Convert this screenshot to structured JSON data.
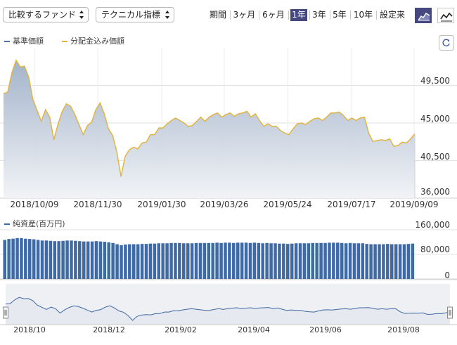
{
  "toolbar": {
    "fund_select": "比較するファンド",
    "indicator_select": "テクニカル指標",
    "period_label": "期間",
    "periods": [
      "3ヶ月",
      "6ヶ月",
      "1年",
      "3年",
      "5年",
      "10年",
      "設定来"
    ],
    "active_period": "1年",
    "chart_type_icons": [
      "area-chart-icon",
      "line-chart-icon"
    ]
  },
  "legend": {
    "base_price": "基準価額",
    "dividend_reinvested": "分配金込み価額",
    "net_assets": "純資産(百万円)"
  },
  "colors": {
    "base_price": "#4b6f9e",
    "dividend_reinvested": "#e5b53a",
    "net_assets": "#3f6aa8",
    "active": "#44487f"
  },
  "chart_data": [
    {
      "type": "area",
      "series": [
        {
          "name": "基準価額",
          "values": [
            48500,
            48700,
            51000,
            52500,
            51700,
            51800,
            50500,
            47800,
            46500,
            45200,
            46600,
            45700,
            43000,
            44900,
            46400,
            47300,
            47000,
            46000,
            44800,
            43600,
            44700,
            45100,
            46600,
            47400,
            46100,
            44300,
            43500,
            41500,
            38600,
            41000,
            41800,
            42100,
            41900,
            42600,
            42700,
            43600,
            43600,
            44400,
            44400,
            44900,
            45300,
            45600,
            45300,
            45000,
            44600,
            44700,
            45200,
            45700,
            45200,
            45700,
            46000,
            46200,
            45700,
            46000,
            46200,
            45800,
            46100,
            46200,
            46400,
            45700,
            46100,
            45300,
            44600,
            44900,
            44600,
            44600,
            44100,
            43800,
            43600,
            44300,
            44900,
            45000,
            44800,
            45200,
            45500,
            45600,
            45300,
            45700,
            46200,
            46200,
            46300,
            45900,
            45300,
            45600,
            45300,
            45600,
            45700,
            43800,
            42800,
            42900,
            43000,
            42900,
            43100,
            42200,
            42300,
            42700,
            42600,
            43100,
            43700
          ]
        },
        {
          "name": "分配金込み価額",
          "values": [
            48500,
            48700,
            51000,
            52500,
            51700,
            51800,
            50500,
            47800,
            46500,
            45200,
            46600,
            45700,
            43000,
            44900,
            46400,
            47300,
            47000,
            46000,
            44800,
            43600,
            44700,
            45100,
            46600,
            47400,
            46100,
            44300,
            43500,
            41500,
            38600,
            41000,
            41800,
            42100,
            41900,
            42600,
            42700,
            43600,
            43600,
            44400,
            44400,
            44900,
            45300,
            45600,
            45300,
            45000,
            44600,
            44700,
            45200,
            45700,
            45200,
            45700,
            46000,
            46200,
            45700,
            46000,
            46200,
            45800,
            46100,
            46200,
            46400,
            45700,
            46100,
            45300,
            44600,
            44900,
            44600,
            44600,
            44100,
            43800,
            43600,
            44300,
            44900,
            45000,
            44800,
            45200,
            45500,
            45600,
            45300,
            45700,
            46200,
            46200,
            46300,
            45900,
            45300,
            45600,
            45300,
            45600,
            45700,
            43800,
            42800,
            42900,
            43000,
            42900,
            43100,
            42200,
            42300,
            42700,
            42600,
            43100,
            43700
          ]
        }
      ],
      "x_tick_labels": [
        "2018/10/09",
        "2018/11/30",
        "2019/01/30",
        "2019/03/26",
        "2019/05/24",
        "2019/07/17",
        "2019/09/09"
      ],
      "y_tick_labels": [
        "49,500",
        "45,000",
        "40,500",
        "36,000"
      ],
      "ylim": [
        36000,
        54000
      ],
      "grid": true
    },
    {
      "type": "bar",
      "series": [
        {
          "name": "純資産(百万円)",
          "values": [
            127000,
            130000,
            131000,
            133000,
            133000,
            131000,
            130000,
            129000,
            127000,
            125000,
            125000,
            124000,
            123000,
            123000,
            124000,
            125000,
            125000,
            124000,
            123000,
            122000,
            122000,
            122000,
            123000,
            122000,
            121000,
            119000,
            117000,
            113000,
            110000,
            112000,
            113000,
            113000,
            113000,
            114000,
            114000,
            115000,
            115000,
            116000,
            116000,
            116000,
            117000,
            117000,
            117000,
            116000,
            116000,
            116000,
            117000,
            117000,
            117000,
            117000,
            117000,
            118000,
            117000,
            118000,
            118000,
            117000,
            118000,
            118000,
            118000,
            117000,
            118000,
            117000,
            116000,
            117000,
            116000,
            116000,
            115000,
            115000,
            114000,
            115000,
            116000,
            116000,
            116000,
            116000,
            117000,
            117000,
            117000,
            117000,
            118000,
            118000,
            118000,
            117000,
            116000,
            117000,
            116000,
            116000,
            116000,
            114000,
            113000,
            113000,
            113000,
            113000,
            114000,
            113000,
            113000,
            113000,
            113000,
            114000,
            115000
          ]
        }
      ],
      "y_tick_labels": [
        "160,000",
        "80,000",
        "0"
      ],
      "ylim": [
        0,
        160000
      ]
    },
    {
      "type": "line",
      "x_tick_labels": [
        "2018/10",
        "2018/12",
        "2019/02",
        "2019/04",
        "2019/06",
        "2019/08"
      ]
    }
  ]
}
